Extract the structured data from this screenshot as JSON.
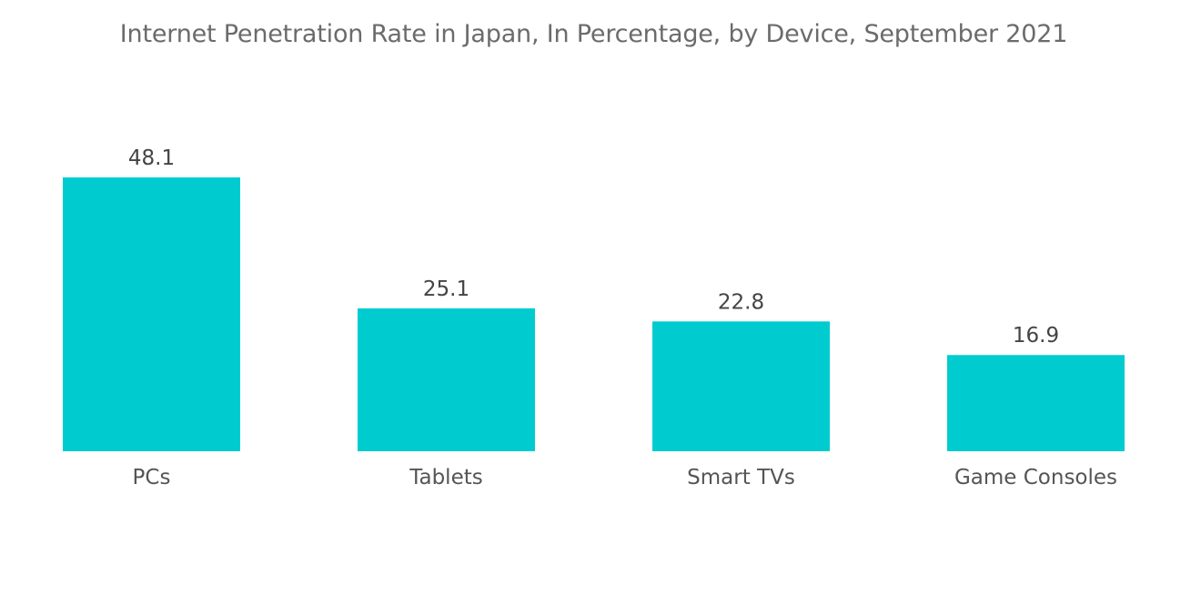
{
  "chart_data": {
    "type": "bar",
    "title": "Internet Penetration Rate in Japan, In Percentage, by Device, September 2021",
    "categories": [
      "PCs",
      "Tablets",
      "Smart TVs",
      "Game Consoles"
    ],
    "values": [
      48.1,
      25.1,
      22.8,
      16.9
    ],
    "xlabel": "",
    "ylabel": "",
    "ylim": [
      0,
      48.1
    ],
    "grid": false,
    "legend": "none",
    "colors": {
      "bar": "#00ccd0",
      "value_label": "#444444",
      "category_label": "#555555"
    }
  }
}
